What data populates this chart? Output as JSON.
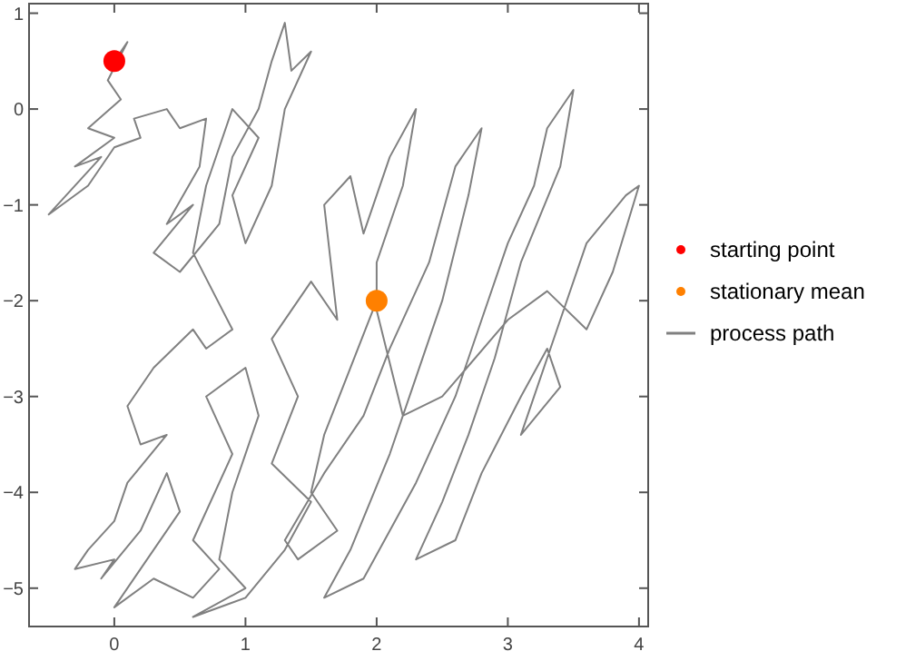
{
  "chart_data": {
    "type": "scatter",
    "xlim": [
      -0.65,
      4.07
    ],
    "ylim": [
      -5.4,
      1.1
    ],
    "xticks": [
      0,
      1,
      2,
      3,
      4
    ],
    "yticks": [
      -5,
      -4,
      -3,
      -2,
      -1,
      0,
      1
    ],
    "grid": false,
    "legend": "right",
    "series": [
      {
        "name": "starting point",
        "color": "#ff0000",
        "marker": "circle",
        "x": [
          0
        ],
        "values": [
          0.5
        ]
      },
      {
        "name": "stationary mean",
        "color": "#ff8000",
        "marker": "circle",
        "x": [
          2
        ],
        "values": [
          -2
        ]
      },
      {
        "name": "process path",
        "type": "line",
        "color": "#808080",
        "marker": "none",
        "x": [
          0,
          0.1,
          -0.05,
          0.05,
          -0.2,
          0,
          -0.3,
          -0.1,
          -0.5,
          -0.2,
          0,
          0.2,
          0.15,
          0.4,
          0.5,
          0.7,
          0.65,
          0.4,
          0.6,
          0.3,
          0.5,
          0.8,
          0.9,
          1.1,
          1.2,
          1.3,
          1.35,
          1.5,
          1.3,
          1.2,
          1,
          0.9,
          1.1,
          0.9,
          0.7,
          0.6,
          0.9,
          0.7,
          0.6,
          0.3,
          0.1,
          0.2,
          0.4,
          0.1,
          0,
          -0.2,
          -0.3,
          0,
          -0.1,
          0.2,
          0.4,
          0.5,
          0.2,
          0,
          0.3,
          0.6,
          0.8,
          0.6,
          0.9,
          0.7,
          1,
          1.1,
          0.9,
          0.8,
          1,
          0.6,
          1,
          1.3,
          1.5,
          1.2,
          1.4,
          1.2,
          1.5,
          1.7,
          1.6,
          1.8,
          1.9,
          2.1,
          2.3,
          2.2,
          2,
          2,
          1.8,
          1.6,
          1.5,
          1.7,
          1.4,
          1.3,
          1.6,
          1.9,
          2.1,
          2.4,
          2.6,
          2.8,
          2.7,
          2.5,
          2.3,
          2.1,
          1.8,
          1.6,
          1.9,
          2.1,
          2.3,
          2.6,
          2.8,
          3,
          3.2,
          3.3,
          3.5,
          3.4,
          3.1,
          2.9,
          2.7,
          2.5,
          2.3,
          2.6,
          2.8,
          3.1,
          3.3,
          3.4,
          3.1,
          3.4,
          3.6,
          3.9,
          4,
          3.8,
          3.6,
          3.3,
          3,
          2.5,
          2.2,
          2
        ],
        "values": [
          0.5,
          0.7,
          0.3,
          0.1,
          -0.2,
          -0.3,
          -0.6,
          -0.5,
          -1.1,
          -0.8,
          -0.4,
          -0.3,
          -0.1,
          0,
          -0.2,
          -0.1,
          -0.6,
          -1.2,
          -1,
          -1.5,
          -1.7,
          -1.2,
          -0.5,
          0,
          0.5,
          0.9,
          0.4,
          0.6,
          0,
          -0.8,
          -1.4,
          -0.9,
          -0.3,
          0,
          -0.8,
          -1.5,
          -2.3,
          -2.5,
          -2.3,
          -2.7,
          -3.1,
          -3.5,
          -3.4,
          -3.9,
          -4.3,
          -4.6,
          -4.8,
          -4.7,
          -4.9,
          -4.4,
          -3.8,
          -4.2,
          -4.8,
          -5.2,
          -4.9,
          -5.1,
          -4.8,
          -4.5,
          -3.6,
          -3,
          -2.7,
          -3.2,
          -4,
          -4.7,
          -5,
          -5.3,
          -5.1,
          -4.6,
          -4.1,
          -3.7,
          -3,
          -2.4,
          -1.8,
          -2.2,
          -1,
          -0.7,
          -1.3,
          -0.5,
          0,
          -0.8,
          -1.6,
          -2,
          -2.7,
          -3.4,
          -4,
          -4.4,
          -4.7,
          -4.5,
          -3.8,
          -3.2,
          -2.5,
          -1.6,
          -0.6,
          -0.2,
          -0.9,
          -2,
          -2.8,
          -3.6,
          -4.6,
          -5.1,
          -4.9,
          -4.4,
          -3.9,
          -3,
          -2.2,
          -1.4,
          -0.8,
          -0.2,
          0.2,
          -0.6,
          -1.6,
          -2.6,
          -3.4,
          -4.1,
          -4.7,
          -4.5,
          -3.8,
          -3,
          -2.5,
          -2.9,
          -3.4,
          -2.2,
          -1.4,
          -0.9,
          -0.8,
          -1.7,
          -2.3,
          -1.9,
          -2.2,
          -3,
          -3.2,
          -2.1
        ]
      }
    ]
  }
}
